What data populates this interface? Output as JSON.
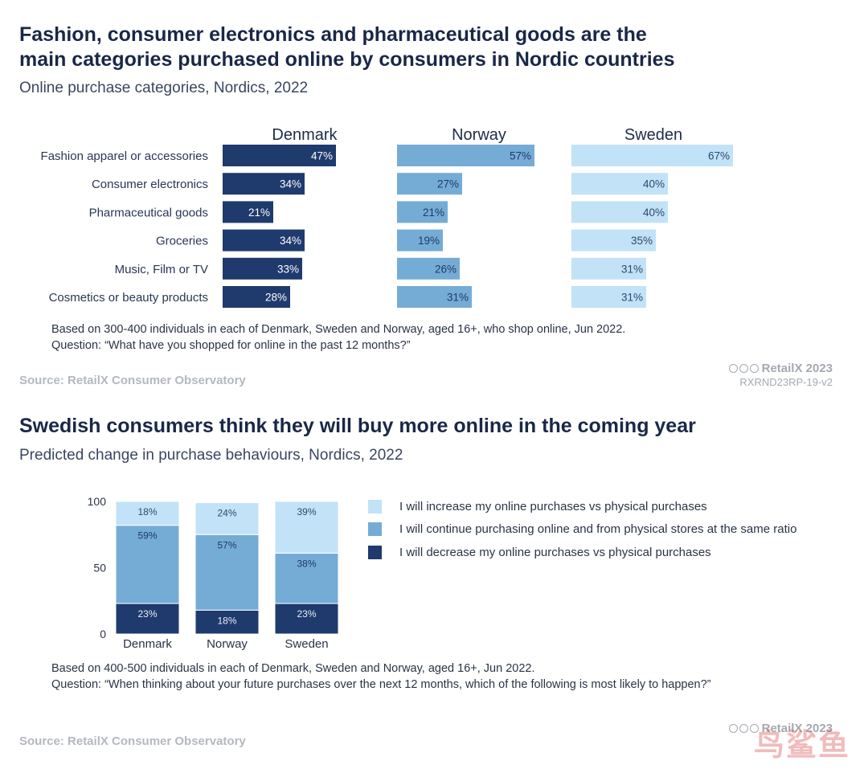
{
  "section1": {
    "title_line1": "Fashion, consumer electronics and pharmaceutical goods are the",
    "title_line2": "main categories purchased online by consumers in Nordic countries",
    "subtitle": "Online purchase categories, Nordics, 2022",
    "note_line1": "Based on 300-400 individuals in each of Denmark, Sweden and Norway, aged 16+, who shop online, Jun 2022.",
    "note_line2": "Question: “What have you shopped for online in the past 12 months?”",
    "source": "Source: RetailX Consumer Observatory",
    "brand": "RetailX 2023",
    "code": "RXRND23RP-19-v2"
  },
  "section2": {
    "title": "Swedish consumers think they will buy more online in the coming year",
    "subtitle": "Predicted change in purchase behaviours, Nordics, 2022",
    "note_line1": "Based on 400-500 individuals in each of Denmark, Sweden and Norway, aged 16+, Jun 2022.",
    "note_line2": "Question: “When thinking about your future purchases over the next 12 months, which of the following is most likely to happen?”",
    "source": "Source: RetailX Consumer Observatory",
    "brand": "RetailX 2023"
  },
  "watermark": "鸟鲨鱼",
  "chart_data": [
    {
      "type": "bar",
      "orientation": "horizontal",
      "layout": "small-multiples",
      "categories": [
        "Fashion apparel or accessories",
        "Consumer electronics",
        "Pharmaceutical goods",
        "Groceries",
        "Music, Film or TV",
        "Cosmetics or beauty products"
      ],
      "series": [
        {
          "name": "Denmark",
          "values": [
            47,
            34,
            21,
            34,
            33,
            28
          ],
          "color": "#1f3a6d"
        },
        {
          "name": "Norway",
          "values": [
            57,
            27,
            21,
            19,
            26,
            31
          ],
          "color": "#75acd6"
        },
        {
          "name": "Sweden",
          "values": [
            67,
            40,
            40,
            35,
            31,
            31
          ],
          "color": "#c2e2f7"
        }
      ],
      "value_suffix": "%",
      "xlim": [
        0,
        100
      ]
    },
    {
      "type": "bar",
      "orientation": "vertical",
      "stacked": true,
      "categories": [
        "Denmark",
        "Norway",
        "Sweden"
      ],
      "series": [
        {
          "name": "I will decrease my online purchases vs physical purchases",
          "values": [
            23,
            18,
            23
          ],
          "color": "#1f3a6d"
        },
        {
          "name": "I will continue purchasing online and from physical stores at the same ratio",
          "values": [
            59,
            57,
            38
          ],
          "color": "#75acd6"
        },
        {
          "name": "I will increase my online purchases vs physical purchases",
          "values": [
            18,
            24,
            39
          ],
          "color": "#c2e2f7"
        }
      ],
      "legend_order": [
        2,
        1,
        0
      ],
      "yticks": [
        0,
        50,
        100
      ],
      "ylim": [
        0,
        100
      ],
      "value_suffix": "%",
      "legend": "right"
    }
  ]
}
